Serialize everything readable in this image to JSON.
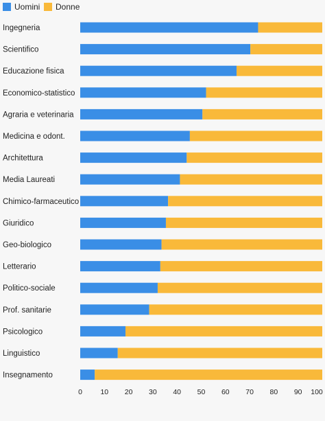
{
  "chart_data": {
    "type": "bar",
    "orientation": "horizontal",
    "stacked": true,
    "categories": [
      "Ingegneria",
      "Scientifico",
      "Educazione fisica",
      "Economico-statistico",
      "Agraria e veterinaria",
      "Medicina e odont.",
      "Architettura",
      "Media Laureati",
      "Chimico-farmaceutico",
      "Giuridico",
      "Geo-biologico",
      "Letterario",
      "Politico-sociale",
      "Prof. sanitarie",
      "Psicologico",
      "Linguistico",
      "Insegnamento"
    ],
    "series": [
      {
        "name": "Uomini",
        "color": "#3a8ee6",
        "values": [
          73.5,
          70.3,
          64.6,
          52.0,
          50.5,
          45.3,
          44.0,
          41.2,
          36.3,
          35.4,
          33.6,
          33.1,
          32.0,
          28.5,
          18.7,
          15.5,
          6.0
        ]
      },
      {
        "name": "Donne",
        "color": "#f9b93a",
        "values": [
          26.5,
          29.7,
          35.4,
          48.0,
          49.5,
          54.7,
          56.0,
          58.8,
          63.7,
          64.6,
          66.4,
          66.9,
          68.0,
          71.5,
          81.3,
          84.5,
          94.0
        ]
      }
    ],
    "xlim": [
      0,
      100
    ],
    "xticks": [
      "0",
      "10",
      "20",
      "30",
      "40",
      "50",
      "60",
      "70",
      "80",
      "90",
      "100"
    ],
    "legend": "top-left",
    "grid": false,
    "title": "",
    "xlabel": "",
    "ylabel": ""
  }
}
